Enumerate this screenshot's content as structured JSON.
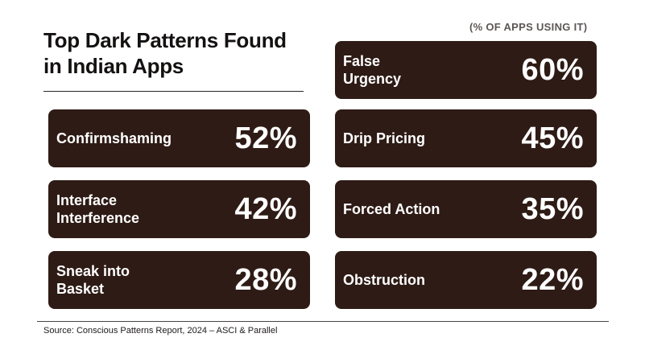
{
  "header": {
    "title": "Top Dark Patterns Found in Indian Apps",
    "subtitle": "(% OF APPS USING IT)"
  },
  "patterns": [
    {
      "label": "False Urgency",
      "value": "60%"
    },
    {
      "label": "Confirmshaming",
      "value": "52%"
    },
    {
      "label": "Drip Pricing",
      "value": "45%"
    },
    {
      "label": "Interface Interference",
      "value": "42%"
    },
    {
      "label": "Forced Action",
      "value": "35%"
    },
    {
      "label": "Sneak into Basket",
      "value": "28%"
    },
    {
      "label": "Obstruction",
      "value": "22%"
    }
  ],
  "footer": {
    "source": "Source: Conscious Patterns Report, 2024 – ASCI & Parallel"
  },
  "colors": {
    "card_background": "#2e1b15",
    "card_text": "#ffffff",
    "title_text": "#141111",
    "subtitle_text": "#5e5656"
  }
}
